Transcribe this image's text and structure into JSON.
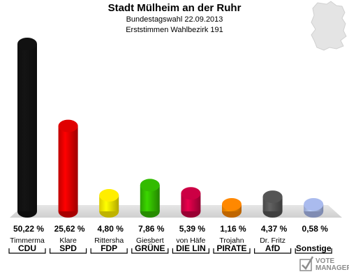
{
  "header": {
    "title": "Stadt Mülheim an der Ruhr",
    "subtitle1": "Bundestagswahl 22.09.2013",
    "subtitle2": "Erststimmen Wahlbezirk 191"
  },
  "logo": {
    "line1": "VOTE",
    "line2": "MANAGER",
    "icon": "vote-manager-logo-icon"
  },
  "colors": {
    "CDU": "#111111",
    "SPD": "#e00000",
    "FDP": "#ffee00",
    "GRUENE": "#33bb00",
    "LINKE": "#cc0044",
    "PIRATEN": "#ff8800",
    "AfD": "#555555",
    "Sonstige": "#aabbee"
  },
  "chart_data": {
    "type": "bar",
    "title": "Stadt Mülheim an der Ruhr",
    "ylim": [
      0,
      50.22
    ],
    "grid": false,
    "categories": [
      "CDU",
      "SPD",
      "FDP",
      "GRÜNE",
      "DIE LIN",
      "PIRATE",
      "AfD",
      "Sonstige"
    ],
    "candidates": [
      "Timmerma",
      "Klare",
      "Rittersha",
      "Giesbert",
      "von Häfe",
      "Trojahn",
      "Dr. Fritz",
      ""
    ],
    "values": [
      50.22,
      25.62,
      4.8,
      7.86,
      5.39,
      1.16,
      4.37,
      0.58
    ],
    "value_labels": [
      "50,22 %",
      "25,62 %",
      "4,80 %",
      "7,86 %",
      "5,39 %",
      "1,16 %",
      "4,37 %",
      "0,58 %"
    ],
    "bar_colors": [
      "#111111",
      "#e00000",
      "#ffee00",
      "#33bb00",
      "#cc0044",
      "#ff8800",
      "#555555",
      "#aabbee"
    ]
  }
}
